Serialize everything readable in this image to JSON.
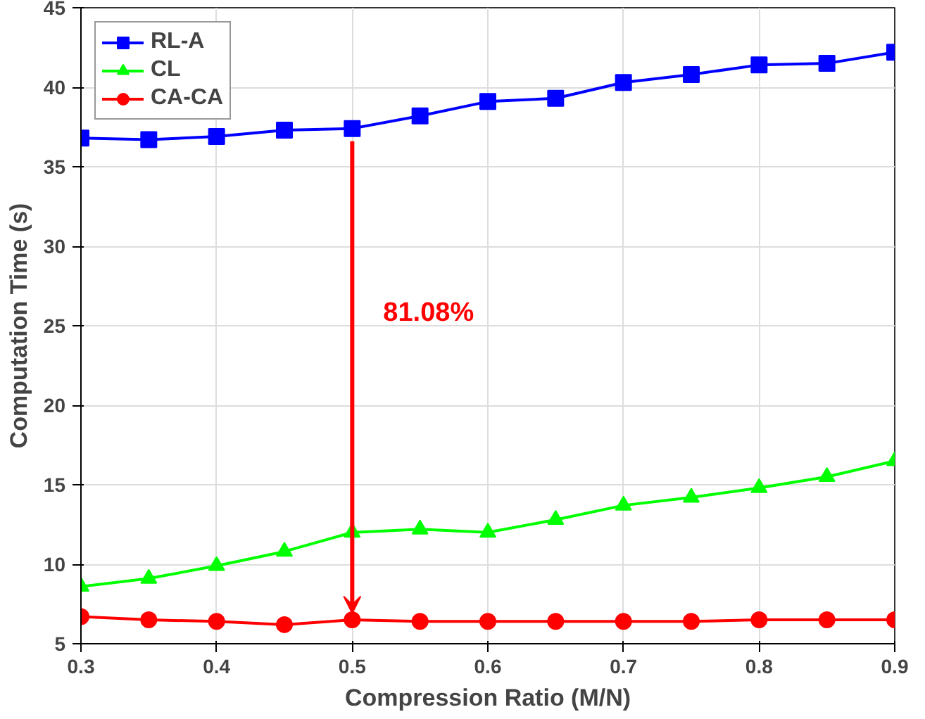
{
  "chart_data": {
    "type": "line",
    "xlabel": "Compression Ratio (M/N)",
    "ylabel": "Computation Time (s)",
    "x": [
      0.3,
      0.35,
      0.4,
      0.45,
      0.5,
      0.55,
      0.6,
      0.65,
      0.7,
      0.75,
      0.8,
      0.85,
      0.9
    ],
    "series": [
      {
        "name": "RL-A",
        "color": "#0000ff",
        "marker": "square",
        "values": [
          36.8,
          36.7,
          36.9,
          37.3,
          37.4,
          38.2,
          39.1,
          39.3,
          40.3,
          40.8,
          41.4,
          41.5,
          42.2
        ]
      },
      {
        "name": "CL",
        "color": "#00ff00",
        "marker": "triangle",
        "values": [
          8.6,
          9.1,
          9.9,
          10.8,
          12.0,
          12.2,
          12.0,
          12.8,
          13.7,
          14.2,
          14.8,
          15.5,
          16.5
        ]
      },
      {
        "name": "CA-CA",
        "color": "#ff0000",
        "marker": "circle",
        "values": [
          6.7,
          6.5,
          6.4,
          6.2,
          6.5,
          6.4,
          6.4,
          6.4,
          6.4,
          6.4,
          6.5,
          6.5,
          6.5
        ]
      }
    ],
    "annotations": [
      "81.08%"
    ],
    "xlim": [
      0.3,
      0.9
    ],
    "xticks": [
      0.3,
      0.4,
      0.5,
      0.6,
      0.7,
      0.8,
      0.9
    ],
    "ylim": [
      5,
      45
    ],
    "yticks": [
      5,
      10,
      15,
      20,
      25,
      30,
      35,
      40,
      45
    ],
    "grid": true,
    "legend": "top left",
    "line_style": "solid"
  }
}
